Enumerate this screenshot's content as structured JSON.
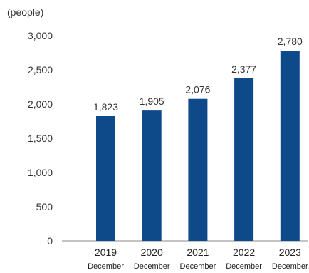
{
  "chart_data": {
    "type": "bar",
    "unit_label": "(people)",
    "categories": [
      {
        "year": "2019",
        "month": "December"
      },
      {
        "year": "2020",
        "month": "December"
      },
      {
        "year": "2021",
        "month": "December"
      },
      {
        "year": "2022",
        "month": "December"
      },
      {
        "year": "2023",
        "month": "December"
      }
    ],
    "values": [
      1823,
      1905,
      2076,
      2377,
      2780
    ],
    "data_labels": [
      "1,823",
      "1,905",
      "2,076",
      "2,377",
      "2,780"
    ],
    "y_ticks": [
      {
        "value": 0,
        "label": "0"
      },
      {
        "value": 500,
        "label": "500"
      },
      {
        "value": 1000,
        "label": "1,000"
      },
      {
        "value": 1500,
        "label": "1,500"
      },
      {
        "value": 2000,
        "label": "2,000"
      },
      {
        "value": 2500,
        "label": "2,500"
      },
      {
        "value": 3000,
        "label": "3,000"
      }
    ],
    "ylim": [
      0,
      3000
    ],
    "grid": false,
    "legend": "none",
    "bar_color": "#0e4a8a",
    "text_color": "#333333",
    "axis_color": "#8a8a8a"
  }
}
